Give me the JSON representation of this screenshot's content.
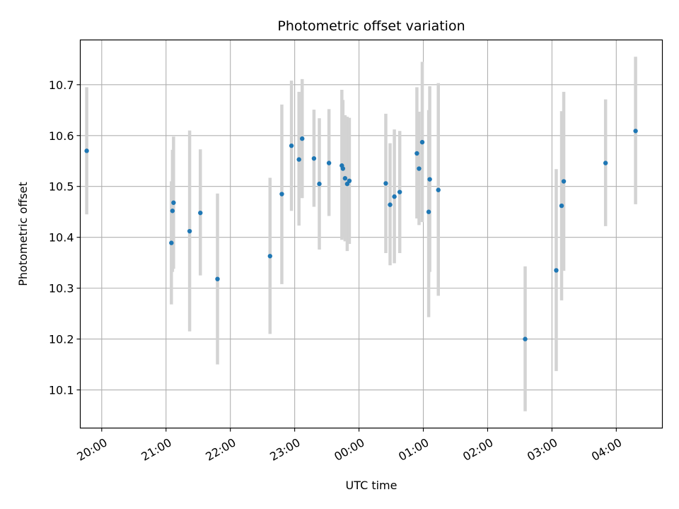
{
  "chart_data": {
    "type": "scatter",
    "title": "Photometric offset variation",
    "xlabel": "UTC time",
    "ylabel": "Photometric offset",
    "xlim": [
      "19:40",
      "04:43"
    ],
    "ylim": [
      10.025,
      10.788
    ],
    "x_ticks": [
      "20:00",
      "21:00",
      "22:00",
      "23:00",
      "00:00",
      "01:00",
      "02:00",
      "03:00",
      "04:00"
    ],
    "y_ticks": [
      10.1,
      10.2,
      10.3,
      10.4,
      10.5,
      10.6,
      10.7
    ],
    "grid": true,
    "colors": {
      "point": "#1f77b4",
      "errorbar": "#d3d3d3",
      "grid": "#b0b0b0"
    },
    "series": [
      {
        "points": [
          {
            "t": "19:46",
            "y": 10.57,
            "lo": 10.445,
            "hi": 10.695
          },
          {
            "t": "21:05",
            "y": 10.389,
            "lo": 10.268,
            "hi": 10.51
          },
          {
            "t": "21:06",
            "y": 10.452,
            "lo": 10.332,
            "hi": 10.572
          },
          {
            "t": "21:07",
            "y": 10.468,
            "lo": 10.338,
            "hi": 10.598
          },
          {
            "t": "21:22",
            "y": 10.412,
            "lo": 10.215,
            "hi": 10.61
          },
          {
            "t": "21:32",
            "y": 10.448,
            "lo": 10.325,
            "hi": 10.573
          },
          {
            "t": "21:48",
            "y": 10.318,
            "lo": 10.15,
            "hi": 10.486
          },
          {
            "t": "22:37",
            "y": 10.363,
            "lo": 10.21,
            "hi": 10.517
          },
          {
            "t": "22:48",
            "y": 10.485,
            "lo": 10.308,
            "hi": 10.661
          },
          {
            "t": "22:57",
            "y": 10.58,
            "lo": 10.452,
            "hi": 10.708
          },
          {
            "t": "23:04",
            "y": 10.553,
            "lo": 10.423,
            "hi": 10.686
          },
          {
            "t": "23:07",
            "y": 10.594,
            "lo": 10.477,
            "hi": 10.711
          },
          {
            "t": "23:18",
            "y": 10.555,
            "lo": 10.46,
            "hi": 10.651
          },
          {
            "t": "23:23",
            "y": 10.505,
            "lo": 10.376,
            "hi": 10.634
          },
          {
            "t": "23:32",
            "y": 10.546,
            "lo": 10.442,
            "hi": 10.652
          },
          {
            "t": "23:44",
            "y": 10.541,
            "lo": 10.395,
            "hi": 10.69
          },
          {
            "t": "23:45",
            "y": 10.535,
            "lo": 10.4,
            "hi": 10.67
          },
          {
            "t": "23:47",
            "y": 10.516,
            "lo": 10.392,
            "hi": 10.64
          },
          {
            "t": "23:49",
            "y": 10.505,
            "lo": 10.373,
            "hi": 10.637
          },
          {
            "t": "23:51",
            "y": 10.511,
            "lo": 10.387,
            "hi": 10.635
          },
          {
            "t": "00:25",
            "y": 10.506,
            "lo": 10.369,
            "hi": 10.643
          },
          {
            "t": "00:29",
            "y": 10.464,
            "lo": 10.345,
            "hi": 10.585
          },
          {
            "t": "00:33",
            "y": 10.48,
            "lo": 10.349,
            "hi": 10.612
          },
          {
            "t": "00:38",
            "y": 10.489,
            "lo": 10.369,
            "hi": 10.609
          },
          {
            "t": "00:54",
            "y": 10.565,
            "lo": 10.437,
            "hi": 10.695
          },
          {
            "t": "00:56",
            "y": 10.535,
            "lo": 10.424,
            "hi": 10.647
          },
          {
            "t": "00:59",
            "y": 10.587,
            "lo": 10.43,
            "hi": 10.745
          },
          {
            "t": "01:05",
            "y": 10.45,
            "lo": 10.243,
            "hi": 10.65
          },
          {
            "t": "01:06",
            "y": 10.514,
            "lo": 10.332,
            "hi": 10.697
          },
          {
            "t": "01:14",
            "y": 10.493,
            "lo": 10.285,
            "hi": 10.703
          },
          {
            "t": "02:35",
            "y": 10.2,
            "lo": 10.058,
            "hi": 10.343
          },
          {
            "t": "03:04",
            "y": 10.335,
            "lo": 10.137,
            "hi": 10.534
          },
          {
            "t": "03:09",
            "y": 10.462,
            "lo": 10.276,
            "hi": 10.648
          },
          {
            "t": "03:11",
            "y": 10.51,
            "lo": 10.334,
            "hi": 10.686
          },
          {
            "t": "03:50",
            "y": 10.546,
            "lo": 10.422,
            "hi": 10.671
          },
          {
            "t": "04:18",
            "y": 10.609,
            "lo": 10.465,
            "hi": 10.755
          }
        ]
      }
    ]
  }
}
